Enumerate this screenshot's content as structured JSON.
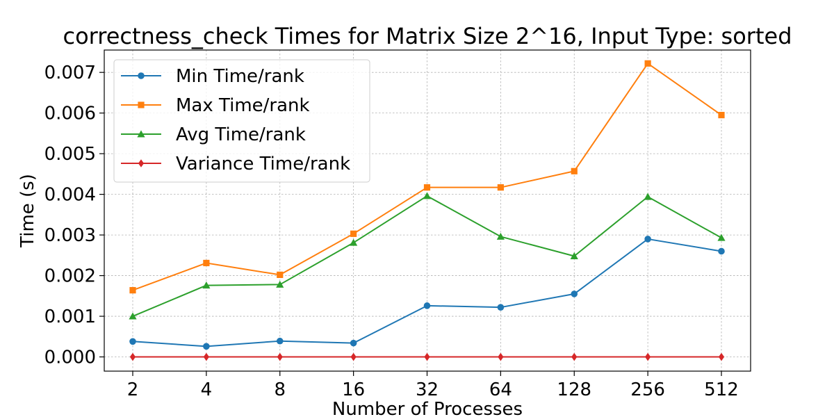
{
  "chart_data": {
    "type": "line",
    "title": "correctness_check Times for Matrix Size 2^16, Input Type: sorted",
    "xlabel": "Number of Processes",
    "ylabel": "Time (s)",
    "categories": [
      "2",
      "4",
      "8",
      "16",
      "32",
      "64",
      "128",
      "256",
      "512"
    ],
    "x_scale": "log2",
    "ylim": [
      -0.00035,
      0.00755
    ],
    "yticks": [
      0.0,
      0.001,
      0.002,
      0.003,
      0.004,
      0.005,
      0.006,
      0.007
    ],
    "ytick_labels": [
      "0.000",
      "0.001",
      "0.002",
      "0.003",
      "0.004",
      "0.005",
      "0.006",
      "0.007"
    ],
    "grid": true,
    "legend_position": "top-left",
    "series": [
      {
        "name": "Min Time/rank",
        "color": "#1f77b4",
        "marker": "circle",
        "values": [
          0.00038,
          0.00026,
          0.00039,
          0.00034,
          0.00126,
          0.00122,
          0.00155,
          0.0029,
          0.0026
        ]
      },
      {
        "name": "Max Time/rank",
        "color": "#ff7f0e",
        "marker": "square",
        "values": [
          0.00164,
          0.00231,
          0.00202,
          0.00303,
          0.00417,
          0.00417,
          0.00457,
          0.00722,
          0.00595
        ]
      },
      {
        "name": "Avg Time/rank",
        "color": "#2ca02c",
        "marker": "triangle",
        "values": [
          0.001,
          0.00176,
          0.00178,
          0.00281,
          0.00396,
          0.00296,
          0.00248,
          0.00394,
          0.00293
        ]
      },
      {
        "name": "Variance Time/rank",
        "color": "#d62728",
        "marker": "diamond",
        "values": [
          0.0,
          0.0,
          0.0,
          0.0,
          0.0,
          0.0,
          0.0,
          0.0,
          0.0
        ]
      }
    ]
  }
}
